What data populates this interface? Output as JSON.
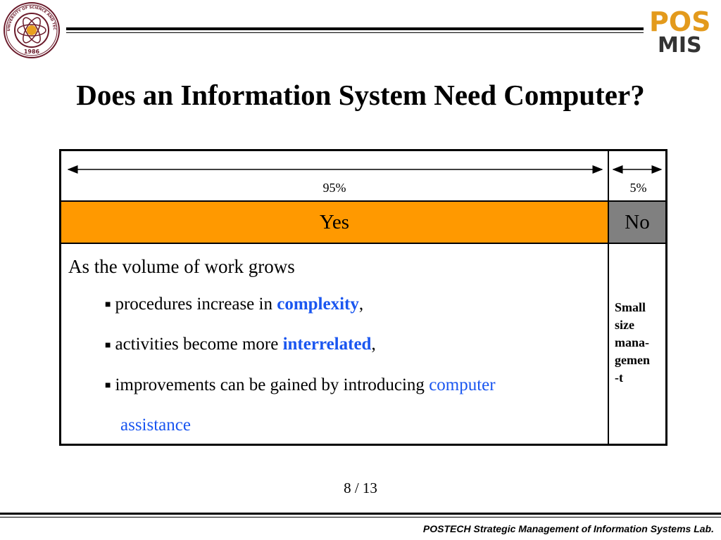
{
  "header": {
    "seal_text": "POHANG UNIVERSITY OF SCIENCE AND TECHNOLOGY",
    "seal_year": "1986",
    "logo_top": "POS",
    "logo_bottom": "MIS"
  },
  "title": "Does an Information System Need Computer?",
  "table": {
    "yes_percent": "95%",
    "no_percent": "5%",
    "yes_label": "Yes",
    "no_label": "No",
    "lead": "As the volume of work grows",
    "bullets": [
      {
        "text": "procedures increase in ",
        "highlight": "complexity",
        "suffix": ","
      },
      {
        "text": "activities become more ",
        "highlight": "interrelated",
        "suffix": ","
      },
      {
        "text": "improvements can be gained by introducing ",
        "highlight": "computer",
        "continuation": "assistance"
      }
    ],
    "side_note_lines": [
      "Small",
      "size",
      "mana-",
      "gemen",
      "-t"
    ]
  },
  "page_number": "8 / 13",
  "footer": "POSTECH Strategic Management of Information Systems Lab.",
  "colors": {
    "yes_bg": "#ff9900",
    "no_bg": "#808080",
    "highlight": "#1a56f0"
  }
}
